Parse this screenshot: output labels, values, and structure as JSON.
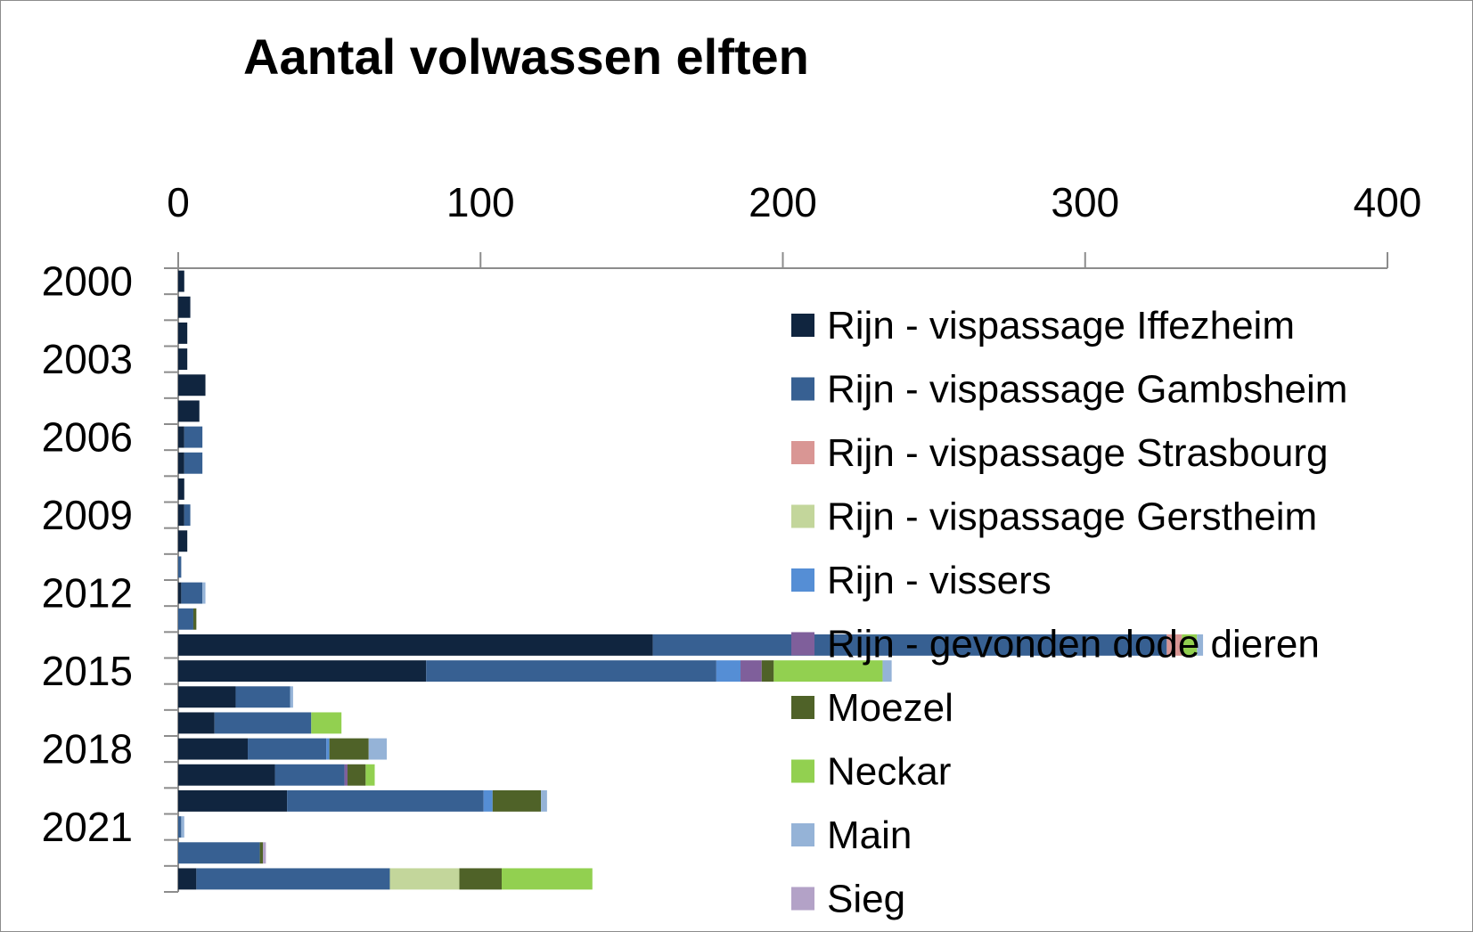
{
  "chart_data": {
    "type": "bar",
    "orientation": "horizontal",
    "stacked": true,
    "title": "Aantal volwassen elften",
    "xlabel": "",
    "ylabel": "",
    "xlim": [
      0,
      400
    ],
    "x_ticks": [
      "0",
      "100",
      "200",
      "300",
      "400"
    ],
    "x_axis_position": "top",
    "grid": false,
    "legend_position": "right",
    "categories": [
      "2000",
      "2001",
      "2002",
      "2003",
      "2004",
      "2005",
      "2006",
      "2007",
      "2008",
      "2009",
      "2010",
      "2011",
      "2012",
      "2013",
      "2014",
      "2015",
      "2016",
      "2017",
      "2018",
      "2019",
      "2020",
      "2021",
      "2022",
      "2023"
    ],
    "category_labels": [
      "2000",
      "",
      "",
      "2003",
      "",
      "",
      "2006",
      "",
      "",
      "2009",
      "",
      "",
      "2012",
      "",
      "",
      "2015",
      "",
      "",
      "2018",
      "",
      "",
      "2021",
      "",
      ""
    ],
    "series": [
      {
        "name": "Rijn - vispassage Iffezheim",
        "color": "#10253f",
        "values": [
          2,
          4,
          3,
          3,
          9,
          7,
          2,
          2,
          2,
          2,
          3,
          0,
          1,
          0,
          157,
          82,
          19,
          12,
          23,
          32,
          36,
          0,
          0,
          6
        ]
      },
      {
        "name": "Rijn - vispassage Gambsheim",
        "color": "#376092",
        "values": [
          0,
          0,
          0,
          0,
          0,
          0,
          6,
          6,
          0,
          2,
          0,
          1,
          7,
          5,
          170,
          96,
          18,
          32,
          26,
          23,
          65,
          1,
          27,
          64
        ]
      },
      {
        "name": "Rijn - vispassage Strasbourg",
        "color": "#d99694",
        "values": [
          0,
          0,
          0,
          0,
          0,
          0,
          0,
          0,
          0,
          0,
          0,
          0,
          0,
          0,
          5,
          0,
          0,
          0,
          0,
          0,
          0,
          0,
          0,
          0
        ]
      },
      {
        "name": "Rijn - vispassage Gerstheim",
        "color": "#c3d69b",
        "values": [
          0,
          0,
          0,
          0,
          0,
          0,
          0,
          0,
          0,
          0,
          0,
          0,
          0,
          0,
          0,
          0,
          0,
          0,
          0,
          0,
          0,
          0,
          0,
          23
        ]
      },
      {
        "name": "Rijn - vissers",
        "color": "#558ed5",
        "values": [
          0,
          0,
          0,
          0,
          0,
          0,
          0,
          0,
          0,
          0,
          0,
          0,
          0,
          0,
          0,
          8,
          0,
          0,
          1,
          0,
          3,
          0,
          0,
          0
        ]
      },
      {
        "name": "Rijn - gevonden dode dieren",
        "color": "#7f5f9b",
        "values": [
          0,
          0,
          0,
          0,
          0,
          0,
          0,
          0,
          0,
          0,
          0,
          0,
          0,
          0,
          0,
          7,
          0,
          0,
          0,
          1,
          0,
          0,
          0,
          0
        ]
      },
      {
        "name": "Moezel",
        "color": "#4f6228",
        "values": [
          0,
          0,
          0,
          0,
          0,
          0,
          0,
          0,
          0,
          0,
          0,
          0,
          0,
          1,
          0,
          4,
          0,
          0,
          13,
          6,
          16,
          0,
          1,
          14
        ]
      },
      {
        "name": "Neckar",
        "color": "#92d050",
        "values": [
          0,
          0,
          0,
          0,
          0,
          0,
          0,
          0,
          0,
          0,
          0,
          0,
          0,
          0,
          5,
          36,
          0,
          10,
          0,
          3,
          0,
          0,
          0,
          30
        ]
      },
      {
        "name": "Main",
        "color": "#95b3d7",
        "values": [
          0,
          0,
          0,
          0,
          0,
          0,
          0,
          0,
          0,
          0,
          0,
          0,
          1,
          0,
          2,
          3,
          1,
          0,
          6,
          0,
          2,
          1,
          0,
          0
        ]
      },
      {
        "name": "Sieg",
        "color": "#b3a2c7",
        "values": [
          0,
          0,
          0,
          0,
          0,
          0,
          0,
          0,
          0,
          0,
          0,
          0,
          0,
          0,
          0,
          0,
          0,
          0,
          0,
          0,
          0,
          0,
          1,
          0
        ]
      }
    ]
  }
}
